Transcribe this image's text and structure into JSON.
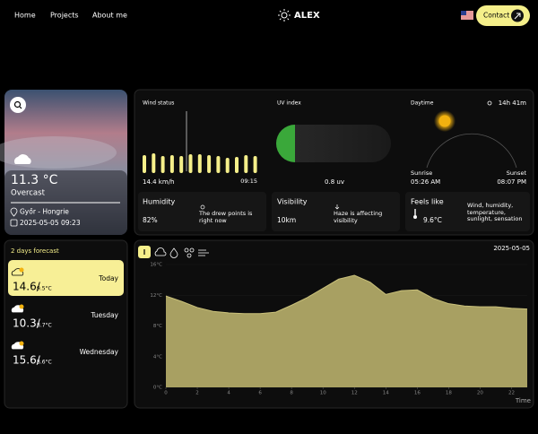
{
  "nav": {
    "items": [
      "Home",
      "Projects",
      "About me"
    ],
    "brand": "ALEX",
    "contact": "Contact"
  },
  "current": {
    "temperature": "11.3 °C",
    "condition": "Overcast",
    "location": "Győr - Hongrie",
    "datetime": "2025-05-05 09:23"
  },
  "wind": {
    "title": "Wind status",
    "speed": "14.4 km/h",
    "time": "09:15",
    "bars": [
      20,
      22,
      19,
      20,
      19,
      21,
      21,
      20,
      19,
      17,
      18,
      20,
      19
    ]
  },
  "uv": {
    "title": "UV index",
    "value": "0.8 uv"
  },
  "daytime": {
    "title": "Daytime",
    "duration": "14h 41m",
    "sunrise_label": "Sunrise",
    "sunrise": "05:26 AM",
    "sunset_label": "Sunset",
    "sunset": "08:07 PM"
  },
  "humidity": {
    "title": "Humidity",
    "value": "82%",
    "note": "The drew points is right now"
  },
  "visibility": {
    "title": "Visibility",
    "value": "10km",
    "note": "Haze is affecting visibility"
  },
  "feels_like": {
    "title": "Feels like",
    "value": "9.6°C",
    "note": "Wind, humidity, temperature, sunlight, sensation"
  },
  "forecast": {
    "title": "2 days forecast",
    "days": [
      {
        "temp": "14.6/",
        "low": "9.5°C",
        "day": "Today"
      },
      {
        "temp": "10.3/",
        "low": "8.7°C",
        "day": "Tuesday"
      },
      {
        "temp": "15.6/",
        "low": "8.6°C",
        "day": "Wednesday"
      }
    ]
  },
  "chart_data": {
    "type": "area",
    "title": "2025-05-05",
    "x_label": "Time",
    "x": [
      0,
      1,
      2,
      3,
      4,
      5,
      6,
      7,
      8,
      9,
      10,
      11,
      12,
      13,
      14,
      15,
      16,
      17,
      18,
      19,
      20,
      21,
      22,
      23
    ],
    "values": [
      11.9,
      11.2,
      10.4,
      9.9,
      9.7,
      9.6,
      9.6,
      9.8,
      10.7,
      11.7,
      12.9,
      14.1,
      14.6,
      13.7,
      12.1,
      12.6,
      12.7,
      11.6,
      10.9,
      10.6,
      10.5,
      10.5,
      10.3,
      10.2
    ],
    "color": "#a8a062",
    "xlim": [
      0,
      23
    ],
    "xticks": [
      0,
      2,
      4,
      6,
      8,
      10,
      12,
      14,
      16,
      18,
      20,
      22
    ],
    "ylim": [
      0,
      16
    ],
    "yticks": [
      {
        "value": 0,
        "label": "0°C"
      },
      {
        "value": 4,
        "label": "4°C"
      },
      {
        "value": 8,
        "label": "8°C"
      },
      {
        "value": 12,
        "label": "12°C"
      },
      {
        "value": 16,
        "label": "16°C"
      }
    ]
  }
}
